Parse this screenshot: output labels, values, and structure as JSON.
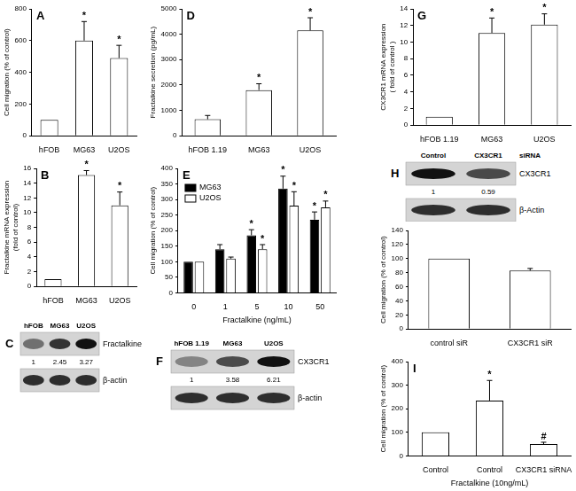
{
  "chart_data": [
    {
      "type": "bar",
      "title": "A",
      "categories": [
        "hFOB",
        "MG63",
        "U2OS"
      ],
      "values": [
        100,
        600,
        490
      ],
      "errors": [
        0,
        120,
        80
      ],
      "marks": [
        null,
        "*",
        "*"
      ],
      "color": "#ffffff",
      "ylabel": "Cell migration (% of control)",
      "ylim": [
        0,
        800
      ],
      "yticks": [
        0,
        200,
        400,
        600,
        800
      ],
      "grid": false
    },
    {
      "type": "bar",
      "title": "B",
      "categories": [
        "hFOB",
        "MG63",
        "U2OS"
      ],
      "values": [
        1,
        15.1,
        11
      ],
      "errors": [
        0,
        0.6,
        1.8
      ],
      "marks": [
        null,
        "*",
        "*"
      ],
      "color": "#ffffff",
      "ylabel": [
        "Fractalkine mRNA expression",
        "(fold of control)"
      ],
      "ylim": [
        0,
        16
      ],
      "yticks": [
        0,
        2,
        4,
        6,
        8,
        10,
        12,
        14,
        16
      ],
      "grid": false
    },
    {
      "type": "bar",
      "title": "D",
      "categories": [
        "hFOB 1.19",
        "MG63",
        "U2OS"
      ],
      "values": [
        650,
        1800,
        4150
      ],
      "errors": [
        150,
        250,
        500
      ],
      "marks": [
        null,
        "*",
        "*"
      ],
      "color": "#ffffff",
      "ylabel": "Fractalkine secretion (pg/mL)",
      "ylim": [
        0,
        5000
      ],
      "yticks": [
        0,
        1000,
        2000,
        3000,
        4000,
        5000
      ],
      "grid": false
    },
    {
      "type": "bar",
      "title": "E",
      "categories": [
        "0",
        "1",
        "5",
        "10",
        "50"
      ],
      "series": [
        {
          "name": "MG63",
          "color": "#000000",
          "values": [
            100,
            140,
            185,
            335,
            235
          ],
          "errors": [
            0,
            15,
            18,
            40,
            25
          ],
          "marks": [
            null,
            null,
            "*",
            "*",
            "*"
          ]
        },
        {
          "name": "U2OS",
          "color": "#ffffff",
          "values": [
            100,
            110,
            140,
            280,
            275
          ],
          "errors": [
            0,
            5,
            15,
            45,
            20
          ],
          "marks": [
            null,
            null,
            "*",
            "*",
            "*"
          ]
        }
      ],
      "xlabel": "Fractalkine (ng/mL)",
      "ylabel": "Cell migration (% of control)",
      "ylim": [
        0,
        400
      ],
      "yticks": [
        0,
        50,
        100,
        150,
        200,
        250,
        300,
        350,
        400
      ],
      "legend": "upper left",
      "grid": false
    },
    {
      "type": "bar",
      "title": "G",
      "categories": [
        "hFOB 1.19",
        "MG63",
        "U2OS"
      ],
      "values": [
        1,
        11.1,
        12.1
      ],
      "errors": [
        0,
        1.8,
        1.3
      ],
      "marks": [
        null,
        "*",
        "*"
      ],
      "color": "#ffffff",
      "ylabel": [
        "CX3CR1 mRNA expression",
        "( fold of control )"
      ],
      "ylim": [
        0,
        14
      ],
      "yticks": [
        0,
        2,
        4,
        6,
        8,
        10,
        12,
        14
      ],
      "grid": false
    },
    {
      "type": "bar",
      "categories": [
        "control siR",
        "CX3CR1 siR"
      ],
      "values": [
        100,
        83
      ],
      "errors": [
        0,
        3
      ],
      "color": "#ffffff",
      "ylabel": "Cell migration (% of control)",
      "ylim": [
        0,
        140
      ],
      "yticks": [
        0,
        20,
        40,
        60,
        80,
        100,
        120,
        140
      ],
      "grid": false
    },
    {
      "type": "bar",
      "title": "I",
      "categories": [
        "Control",
        "Control",
        "CX3CR1 siRNA"
      ],
      "values": [
        100,
        235,
        50
      ],
      "errors": [
        0,
        85,
        8
      ],
      "marks": [
        null,
        "*",
        "#"
      ],
      "color": "#ffffff",
      "xlabel": "Fractalkine (10ng/mL)",
      "ylabel": "Cell migration (% of control)",
      "ylim": [
        0,
        400
      ],
      "yticks": [
        0,
        100,
        200,
        300,
        400
      ],
      "grid": false
    }
  ],
  "blots": [
    {
      "title": "C",
      "lanes": [
        "hFOB",
        "MG63",
        "U2OS"
      ],
      "rows": [
        {
          "label": "Fractalkine",
          "values": [
            1,
            2.45,
            3.27
          ]
        },
        {
          "label": "β-actin"
        }
      ]
    },
    {
      "title": "F",
      "lanes": [
        "hFOB 1.19",
        "MG63",
        "U2OS"
      ],
      "rows": [
        {
          "label": "CX3CR1",
          "values": [
            1,
            3.58,
            6.21
          ]
        },
        {
          "label": "β-actin"
        }
      ]
    },
    {
      "title": "H",
      "lanes": [
        "Control",
        "CX3CR1"
      ],
      "lane_note": "siRNA",
      "rows": [
        {
          "label": "CX3CR1",
          "values": [
            1,
            0.59
          ]
        },
        {
          "label": "β-Actin"
        }
      ]
    }
  ]
}
